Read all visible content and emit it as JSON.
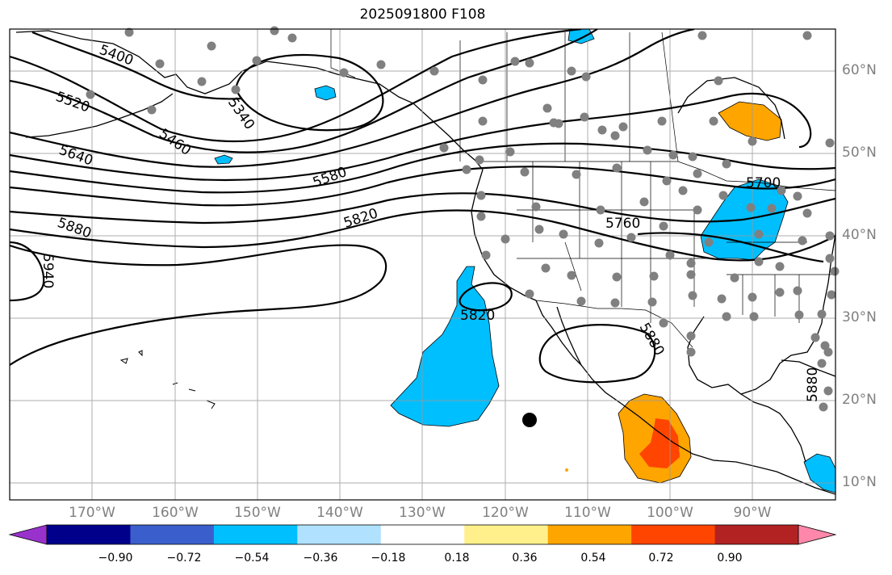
{
  "title": "2025091800 F108",
  "map": {
    "lon_labels": [
      "170°W",
      "160°W",
      "150°W",
      "140°W",
      "130°W",
      "120°W",
      "110°W",
      "100°W",
      "90°W"
    ],
    "lat_labels": [
      "60°N",
      "50°N",
      "40°N",
      "30°N",
      "20°N",
      "10°N"
    ],
    "contour_labels": [
      "5400",
      "5340",
      "5520",
      "5460",
      "5640",
      "5580",
      "5700",
      "5760",
      "5820",
      "5880",
      "5940",
      "5820",
      "5880",
      "5880"
    ],
    "station_dot_color": "#808080",
    "contour_color": "#000000"
  },
  "colorbar": {
    "ticks": [
      "−0.90",
      "−0.72",
      "−0.54",
      "−0.36",
      "−0.18",
      "0.18",
      "0.36",
      "0.54",
      "0.72",
      "0.90"
    ],
    "colors": [
      "#9932cc",
      "#00008b",
      "#3a5fcd",
      "#00bfff",
      "#b0e2ff",
      "#ffffff",
      "#fff08b",
      "#ffa500",
      "#ff4500",
      "#b22222",
      "#ff88aa"
    ]
  }
}
